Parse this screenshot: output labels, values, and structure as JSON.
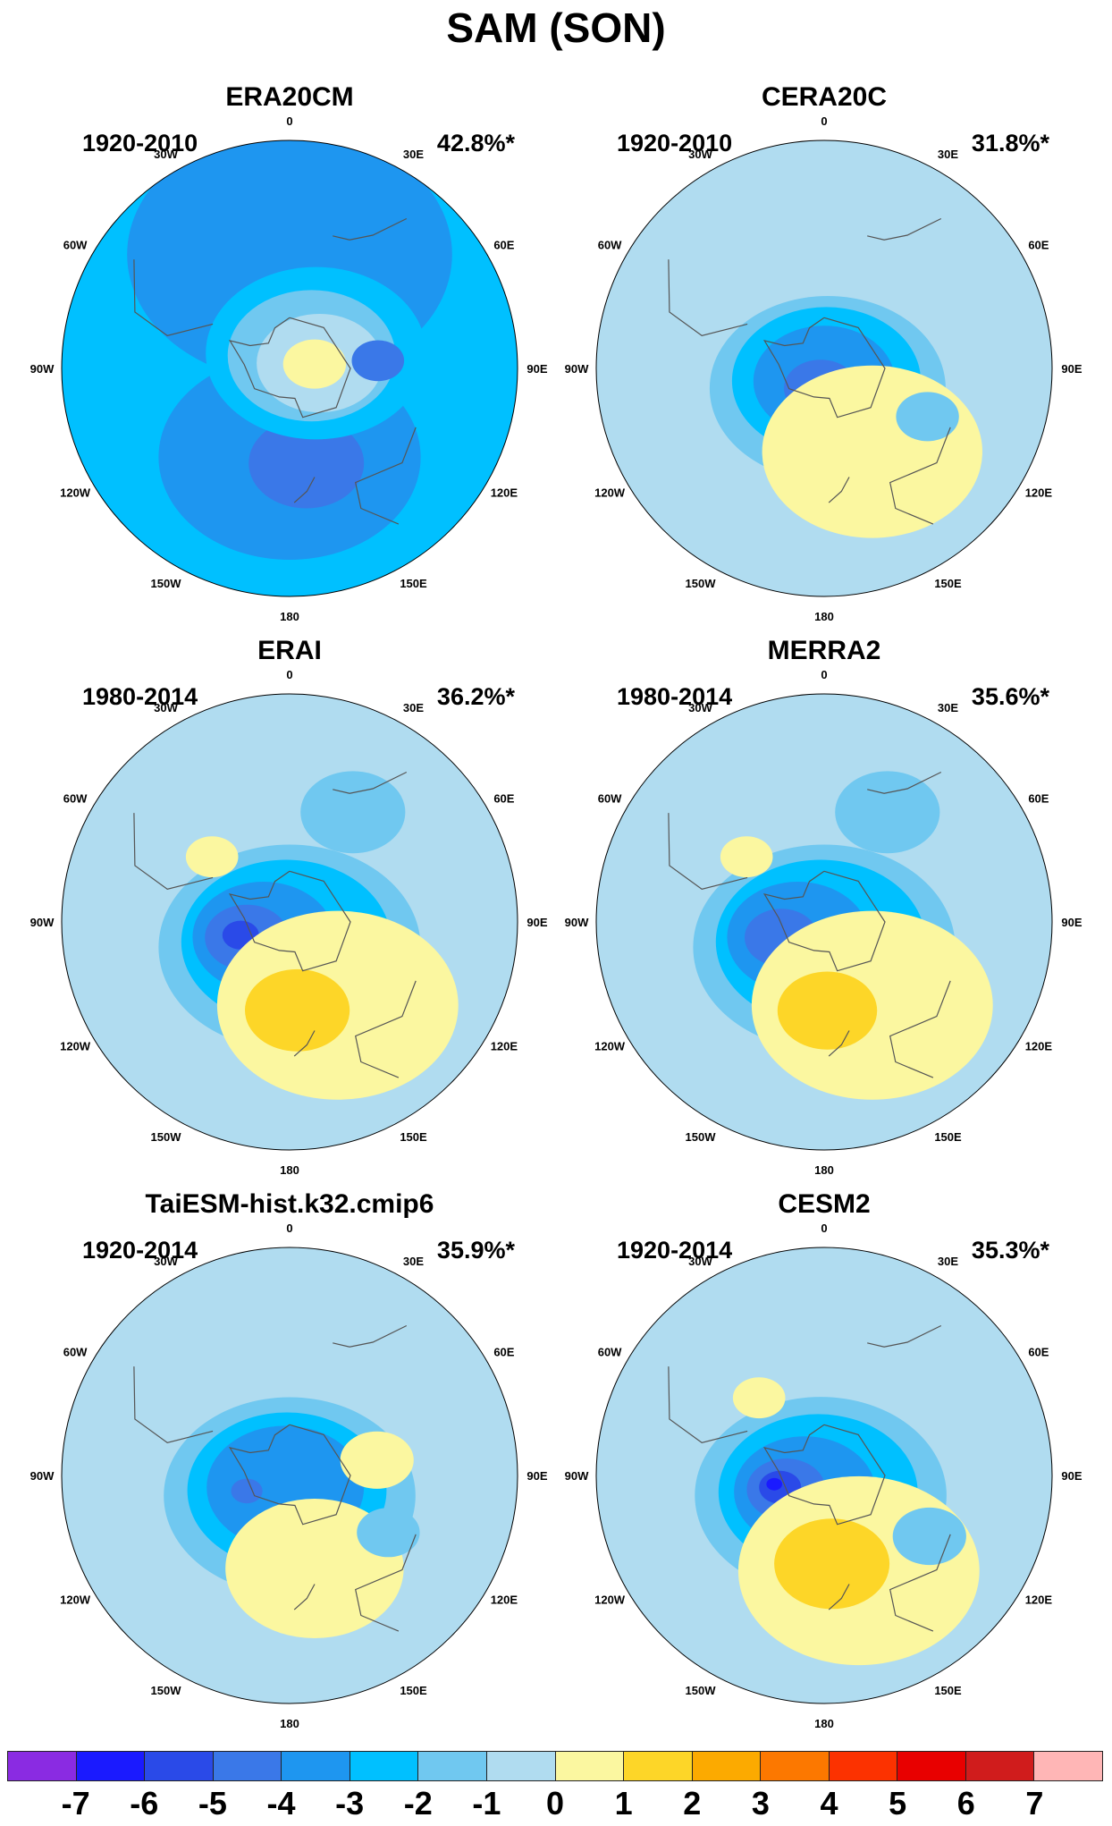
{
  "title": "SAM (SON)",
  "longitude_labels": [
    "0",
    "30E",
    "60E",
    "90E",
    "120E",
    "150E",
    "180",
    "150W",
    "120W",
    "90W",
    "60W",
    "30W"
  ],
  "panels": [
    {
      "name": "ERA20CM",
      "period": "1920-2010",
      "variance": "42.8%*",
      "background_level": -2,
      "features": [
        {
          "level": -3,
          "lon": 0,
          "lat": -45,
          "extent": 0.62
        },
        {
          "level": -3,
          "lon": 180,
          "lat": -55,
          "extent": 0.5
        },
        {
          "level": -4,
          "lon": 170,
          "lat": -52,
          "extent": 0.22
        },
        {
          "level": -2,
          "lon": 60,
          "lat": -78,
          "extent": 0.42
        },
        {
          "level": -1,
          "lon": 60,
          "lat": -80,
          "extent": 0.32
        },
        {
          "level": 0,
          "lon": 80,
          "lat": -78,
          "extent": 0.24
        },
        {
          "level": 1,
          "lon": 80,
          "lat": -80,
          "extent": 0.12
        },
        {
          "level": -4,
          "lon": 85,
          "lat": -55,
          "extent": 0.1
        }
      ]
    },
    {
      "name": "CERA20C",
      "period": "1920-2010",
      "variance": "31.8%*",
      "background_level": 0,
      "features": [
        {
          "level": -1,
          "lon": 170,
          "lat": -82,
          "extent": 0.45
        },
        {
          "level": -2,
          "lon": 170,
          "lat": -85,
          "extent": 0.36
        },
        {
          "level": -3,
          "lon": 180,
          "lat": -85,
          "extent": 0.27
        },
        {
          "level": -4,
          "lon": 190,
          "lat": -82,
          "extent": 0.14
        },
        {
          "level": 1,
          "lon": 150,
          "lat": -52,
          "extent": 0.42
        },
        {
          "level": -1,
          "lon": 115,
          "lat": -45,
          "extent": 0.12
        }
      ]
    },
    {
      "name": "ERAI",
      "period": "1980-2014",
      "variance": "36.2%*",
      "background_level": 0,
      "features": [
        {
          "level": -1,
          "lon": 180,
          "lat": -80,
          "extent": 0.5
        },
        {
          "level": -2,
          "lon": 190,
          "lat": -82,
          "extent": 0.4
        },
        {
          "level": -3,
          "lon": 240,
          "lat": -78,
          "extent": 0.27
        },
        {
          "level": -4,
          "lon": 250,
          "lat": -72,
          "extent": 0.16
        },
        {
          "level": -5,
          "lon": 255,
          "lat": -70,
          "extent": 0.07
        },
        {
          "level": 1,
          "lon": 150,
          "lat": -52,
          "extent": 0.46
        },
        {
          "level": 2,
          "lon": 175,
          "lat": -55,
          "extent": 0.2
        },
        {
          "level": 1,
          "lon": 310,
          "lat": -50,
          "extent": 0.1
        },
        {
          "level": -1,
          "lon": 30,
          "lat": -40,
          "extent": 0.2
        }
      ]
    },
    {
      "name": "MERRA2",
      "period": "1980-2014",
      "variance": "35.6%*",
      "background_level": 0,
      "features": [
        {
          "level": -1,
          "lon": 180,
          "lat": -80,
          "extent": 0.5
        },
        {
          "level": -2,
          "lon": 190,
          "lat": -82,
          "extent": 0.4
        },
        {
          "level": -3,
          "lon": 240,
          "lat": -78,
          "extent": 0.27
        },
        {
          "level": -4,
          "lon": 250,
          "lat": -72,
          "extent": 0.14
        },
        {
          "level": 1,
          "lon": 150,
          "lat": -52,
          "extent": 0.46
        },
        {
          "level": 2,
          "lon": 178,
          "lat": -55,
          "extent": 0.19
        },
        {
          "level": 1,
          "lon": 310,
          "lat": -50,
          "extent": 0.1
        },
        {
          "level": -1,
          "lon": 30,
          "lat": -40,
          "extent": 0.2
        }
      ]
    },
    {
      "name": "TaiESM-hist.k32.cmip6",
      "period": "1920-2014",
      "variance": "35.9%*",
      "background_level": 0,
      "features": [
        {
          "level": -1,
          "lon": 180,
          "lat": -82,
          "extent": 0.48
        },
        {
          "level": -2,
          "lon": 190,
          "lat": -84,
          "extent": 0.38
        },
        {
          "level": -3,
          "lon": 200,
          "lat": -85,
          "extent": 0.3
        },
        {
          "level": -4,
          "lon": 250,
          "lat": -72,
          "extent": 0.06
        },
        {
          "level": 1,
          "lon": 165,
          "lat": -52,
          "extent": 0.34
        },
        {
          "level": 1,
          "lon": 80,
          "lat": -55,
          "extent": 0.14
        },
        {
          "level": -1,
          "lon": 120,
          "lat": -45,
          "extent": 0.12
        }
      ]
    },
    {
      "name": "CESM2",
      "period": "1920-2014",
      "variance": "35.3%*",
      "background_level": 0,
      "features": [
        {
          "level": -1,
          "lon": 190,
          "lat": -82,
          "extent": 0.48
        },
        {
          "level": -2,
          "lon": 200,
          "lat": -83,
          "extent": 0.38
        },
        {
          "level": -3,
          "lon": 230,
          "lat": -80,
          "extent": 0.27
        },
        {
          "level": -4,
          "lon": 250,
          "lat": -74,
          "extent": 0.15
        },
        {
          "level": -5,
          "lon": 255,
          "lat": -72,
          "extent": 0.08
        },
        {
          "level": -6,
          "lon": 260,
          "lat": -70,
          "extent": 0.03
        },
        {
          "level": 1,
          "lon": 160,
          "lat": -50,
          "extent": 0.46
        },
        {
          "level": 2,
          "lon": 175,
          "lat": -55,
          "extent": 0.22
        },
        {
          "level": 1,
          "lon": 320,
          "lat": -50,
          "extent": 0.1
        },
        {
          "level": -1,
          "lon": 120,
          "lat": -42,
          "extent": 0.14
        }
      ]
    }
  ],
  "colorbar": {
    "labels": [
      "-7",
      "-6",
      "-5",
      "-4",
      "-3",
      "-2",
      "-1",
      "0",
      "1",
      "2",
      "3",
      "4",
      "5",
      "6",
      "7"
    ],
    "colors": [
      "#8a2be2",
      "#1a1aff",
      "#2a4ae8",
      "#3a78e8",
      "#1e96f0",
      "#00c0ff",
      "#70c8f0",
      "#b0dcf0",
      "#fbf7a0",
      "#fdd628",
      "#fcaa00",
      "#fc7800",
      "#fc3200",
      "#e80000",
      "#d01c1c",
      "#ffb6b6"
    ]
  }
}
